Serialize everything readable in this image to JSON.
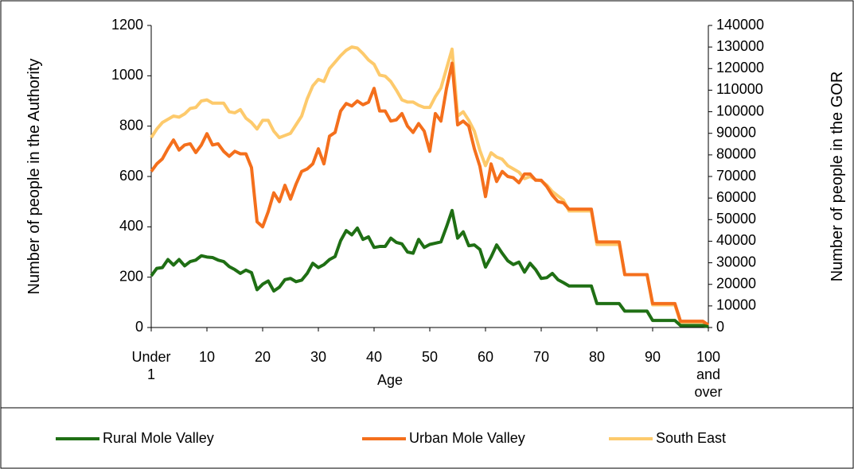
{
  "chart_data": {
    "type": "line",
    "x_label": "Age",
    "y_label": "Number of people in the Authority",
    "y2_label": "Number of people in the GOR",
    "categories": [
      "Under 1",
      null,
      null,
      null,
      null,
      null,
      null,
      null,
      null,
      null,
      "10",
      null,
      null,
      null,
      null,
      null,
      null,
      null,
      null,
      null,
      "20",
      null,
      null,
      null,
      null,
      null,
      null,
      null,
      null,
      null,
      "30",
      null,
      null,
      null,
      null,
      null,
      null,
      null,
      null,
      null,
      "40",
      null,
      null,
      null,
      null,
      null,
      null,
      null,
      null,
      null,
      "50",
      null,
      null,
      null,
      null,
      null,
      null,
      null,
      null,
      null,
      "60",
      null,
      null,
      null,
      null,
      null,
      null,
      null,
      null,
      null,
      "70",
      null,
      null,
      null,
      null,
      null,
      null,
      null,
      null,
      null,
      "80",
      null,
      null,
      null,
      null,
      null,
      null,
      null,
      null,
      null,
      "90",
      null,
      null,
      null,
      null,
      null,
      null,
      null,
      null,
      null,
      "100 and over"
    ],
    "ylim": [
      0,
      1200
    ],
    "yticks": [
      0,
      200,
      400,
      600,
      800,
      1000,
      1200
    ],
    "y2lim": [
      0,
      140000
    ],
    "y2ticks": [
      0,
      10000,
      20000,
      30000,
      40000,
      50000,
      60000,
      70000,
      80000,
      90000,
      100000,
      110000,
      120000,
      130000,
      140000
    ],
    "legend": "bottom",
    "series": [
      {
        "name": "Rural Mole Valley",
        "color": "#1f6f14",
        "axis": "y",
        "values": [
          205,
          235,
          238,
          270,
          248,
          270,
          245,
          262,
          268,
          285,
          280,
          278,
          268,
          262,
          242,
          230,
          215,
          228,
          218,
          150,
          172,
          185,
          145,
          160,
          190,
          195,
          182,
          188,
          215,
          255,
          238,
          250,
          270,
          282,
          345,
          385,
          368,
          395,
          350,
          360,
          318,
          322,
          322,
          355,
          338,
          332,
          300,
          295,
          350,
          318,
          330,
          335,
          340,
          400,
          465,
          355,
          380,
          325,
          328,
          310,
          240,
          280,
          328,
          295,
          265,
          250,
          260,
          220,
          255,
          230,
          195,
          198,
          215,
          190,
          178,
          165,
          165,
          165,
          165,
          165,
          95,
          95,
          95,
          95,
          95,
          65,
          65,
          65,
          65,
          65,
          28,
          28,
          28,
          28,
          28,
          8,
          8,
          8,
          8,
          8,
          3
        ]
      },
      {
        "name": "Urban Mole Valley",
        "color": "#f46f1c",
        "axis": "y",
        "values": [
          620,
          650,
          670,
          710,
          745,
          705,
          725,
          730,
          695,
          725,
          770,
          725,
          730,
          700,
          680,
          700,
          690,
          690,
          635,
          420,
          400,
          460,
          535,
          500,
          565,
          510,
          570,
          620,
          630,
          650,
          710,
          650,
          760,
          775,
          860,
          890,
          880,
          900,
          885,
          895,
          950,
          860,
          860,
          820,
          825,
          850,
          800,
          775,
          810,
          780,
          700,
          850,
          820,
          950,
          1050,
          805,
          820,
          800,
          710,
          640,
          520,
          650,
          580,
          620,
          600,
          595,
          575,
          610,
          610,
          585,
          585,
          560,
          525,
          500,
          495,
          470,
          470,
          470,
          470,
          470,
          340,
          340,
          340,
          340,
          340,
          210,
          210,
          210,
          210,
          210,
          95,
          95,
          95,
          95,
          95,
          25,
          25,
          25,
          25,
          25,
          10
        ]
      },
      {
        "name": "South East",
        "color": "#fdca6c",
        "axis": "y2",
        "values": [
          88000,
          92000,
          95000,
          96500,
          98000,
          97500,
          99000,
          101500,
          102000,
          105000,
          105500,
          104000,
          104000,
          104000,
          100000,
          99500,
          101000,
          97000,
          95000,
          92000,
          96000,
          96000,
          91000,
          88000,
          89000,
          90000,
          94000,
          98000,
          106000,
          112000,
          115000,
          114000,
          120000,
          123000,
          126000,
          128500,
          130000,
          129500,
          127000,
          124000,
          122000,
          117000,
          116500,
          114000,
          110000,
          105500,
          104500,
          104500,
          103000,
          102000,
          102000,
          107000,
          111000,
          120000,
          129000,
          98000,
          100000,
          96000,
          91000,
          82000,
          75000,
          81000,
          79000,
          78000,
          75000,
          73500,
          72000,
          69000,
          70000,
          68500,
          68000,
          66000,
          63000,
          61000,
          59000,
          54000,
          54000,
          54000,
          54000,
          54000,
          38500,
          38500,
          38500,
          38500,
          38500,
          24500,
          24500,
          24500,
          24500,
          24500,
          10500,
          10500,
          10500,
          10500,
          10500,
          2500,
          2500,
          2500,
          2500,
          2500,
          1000
        ]
      }
    ]
  }
}
